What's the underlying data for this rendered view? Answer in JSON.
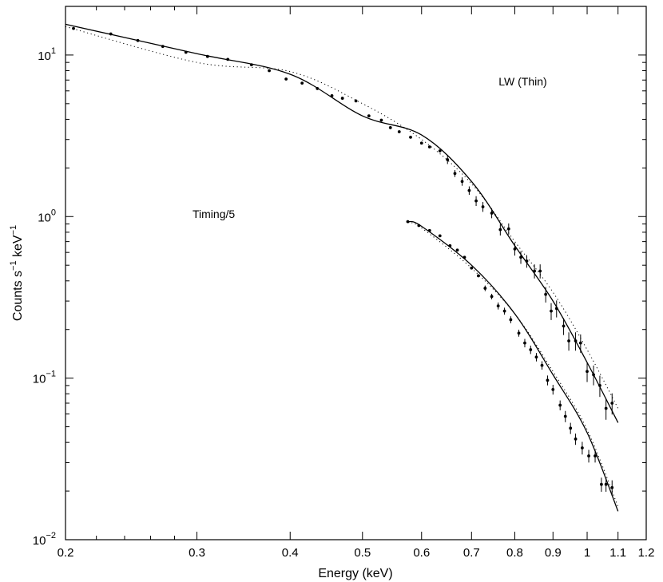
{
  "chart_data": {
    "type": "scatter",
    "title": "",
    "xlabel": "Energy (keV)",
    "ylabel": {
      "base": "Counts s",
      "exp1": "−1",
      "mid": " keV",
      "exp2": "−1"
    },
    "xscale": "log",
    "yscale": "log",
    "xlim": [
      0.2,
      1.2
    ],
    "ylim": [
      0.01,
      20
    ],
    "grid": false,
    "legend": "none",
    "x_ticks": [
      {
        "value": 0.2,
        "label": "0.2"
      },
      {
        "value": 0.3,
        "label": "0.3"
      },
      {
        "value": 0.4,
        "label": "0.4"
      },
      {
        "value": 0.5,
        "label": "0.5"
      },
      {
        "value": 0.6,
        "label": "0.6"
      },
      {
        "value": 0.7,
        "label": "0.7"
      },
      {
        "value": 0.8,
        "label": "0.8"
      },
      {
        "value": 0.9,
        "label": "0.9"
      },
      {
        "value": 1.0,
        "label": "1"
      },
      {
        "value": 1.1,
        "label": "1.1"
      },
      {
        "value": 1.2,
        "label": "1.2"
      }
    ],
    "y_ticks": [
      {
        "value": 10,
        "base": "10",
        "exp": "1"
      },
      {
        "value": 1,
        "base": "10",
        "exp": "0"
      },
      {
        "value": 0.1,
        "base": "10",
        "exp": "−1"
      },
      {
        "value": 0.01,
        "base": "10",
        "exp": "−2"
      }
    ],
    "annotations": [
      {
        "text": "LW (Thin)",
        "x": 0.82,
        "y": 6.5
      },
      {
        "text": "Timing/5",
        "x": 0.316,
        "y": 0.98
      }
    ],
    "series": [
      {
        "id": "lw",
        "points": [
          [
            0.205,
            14.6,
            0
          ],
          [
            0.23,
            13.5,
            0
          ],
          [
            0.25,
            12.3,
            0
          ],
          [
            0.27,
            11.3,
            0
          ],
          [
            0.29,
            10.4,
            0
          ],
          [
            0.31,
            9.8,
            0
          ],
          [
            0.33,
            9.4,
            0
          ],
          [
            0.355,
            8.7,
            0
          ],
          [
            0.375,
            8.0,
            0
          ],
          [
            0.395,
            7.1,
            0
          ],
          [
            0.415,
            6.7,
            0
          ],
          [
            0.435,
            6.2,
            0
          ],
          [
            0.455,
            5.6,
            0
          ],
          [
            0.47,
            5.4,
            0
          ],
          [
            0.49,
            5.2,
            0
          ],
          [
            0.51,
            4.2,
            0
          ],
          [
            0.53,
            3.95,
            0
          ],
          [
            0.545,
            3.55,
            0
          ],
          [
            0.56,
            3.35,
            0
          ],
          [
            0.58,
            3.1,
            0
          ],
          [
            0.6,
            2.85,
            0
          ],
          [
            0.615,
            2.7,
            0
          ],
          [
            0.635,
            2.55,
            0
          ],
          [
            0.65,
            2.25,
            0.06
          ],
          [
            0.665,
            1.85,
            0.05
          ],
          [
            0.68,
            1.65,
            0.06
          ],
          [
            0.695,
            1.45,
            0.06
          ],
          [
            0.71,
            1.25,
            0.07
          ],
          [
            0.725,
            1.15,
            0.07
          ],
          [
            0.745,
            1.05,
            0.07
          ],
          [
            0.765,
            0.83,
            0.08
          ],
          [
            0.785,
            0.84,
            0.08
          ],
          [
            0.8,
            0.63,
            0.09
          ],
          [
            0.815,
            0.56,
            0.09
          ],
          [
            0.83,
            0.53,
            0.09
          ],
          [
            0.85,
            0.46,
            0.1
          ],
          [
            0.865,
            0.46,
            0.1
          ],
          [
            0.88,
            0.33,
            0.11
          ],
          [
            0.895,
            0.26,
            0.12
          ],
          [
            0.91,
            0.27,
            0.12
          ],
          [
            0.93,
            0.21,
            0.12
          ],
          [
            0.945,
            0.17,
            0.13
          ],
          [
            0.965,
            0.17,
            0.13
          ],
          [
            0.98,
            0.165,
            0.13
          ],
          [
            1.0,
            0.11,
            0.14
          ],
          [
            1.02,
            0.105,
            0.14
          ],
          [
            1.04,
            0.09,
            0.15
          ],
          [
            1.06,
            0.065,
            0.15
          ],
          [
            1.08,
            0.07,
            0.15
          ]
        ],
        "model_solid": [
          [
            0.2,
            15.5
          ],
          [
            0.3,
            10.2
          ],
          [
            0.4,
            7.6
          ],
          [
            0.5,
            4.2
          ],
          [
            0.6,
            3.2
          ],
          [
            0.7,
            1.65
          ],
          [
            0.8,
            0.66
          ],
          [
            0.9,
            0.3
          ],
          [
            1.0,
            0.125
          ],
          [
            1.1,
            0.053
          ]
        ],
        "model_dotted": [
          [
            0.2,
            15.0
          ],
          [
            0.3,
            9.0
          ],
          [
            0.4,
            7.9
          ],
          [
            0.5,
            5.0
          ],
          [
            0.6,
            3.0
          ],
          [
            0.7,
            1.6
          ],
          [
            0.8,
            0.7
          ],
          [
            0.9,
            0.34
          ],
          [
            1.0,
            0.15
          ],
          [
            1.1,
            0.065
          ]
        ]
      },
      {
        "id": "timing",
        "points": [
          [
            0.575,
            0.93,
            0
          ],
          [
            0.595,
            0.88,
            0
          ],
          [
            0.615,
            0.82,
            0
          ],
          [
            0.635,
            0.76,
            0
          ],
          [
            0.655,
            0.66,
            0
          ],
          [
            0.67,
            0.62,
            0
          ],
          [
            0.685,
            0.56,
            0
          ],
          [
            0.7,
            0.48,
            0
          ],
          [
            0.715,
            0.43,
            0
          ],
          [
            0.73,
            0.36,
            0.04
          ],
          [
            0.745,
            0.32,
            0.04
          ],
          [
            0.76,
            0.28,
            0.05
          ],
          [
            0.775,
            0.26,
            0.05
          ],
          [
            0.79,
            0.23,
            0.05
          ],
          [
            0.81,
            0.19,
            0.05
          ],
          [
            0.825,
            0.165,
            0.06
          ],
          [
            0.84,
            0.15,
            0.06
          ],
          [
            0.855,
            0.135,
            0.06
          ],
          [
            0.87,
            0.12,
            0.06
          ],
          [
            0.885,
            0.097,
            0.07
          ],
          [
            0.9,
            0.085,
            0.07
          ],
          [
            0.92,
            0.068,
            0.07
          ],
          [
            0.935,
            0.058,
            0.08
          ],
          [
            0.95,
            0.049,
            0.08
          ],
          [
            0.965,
            0.042,
            0.08
          ],
          [
            0.985,
            0.037,
            0.09
          ],
          [
            1.005,
            0.033,
            0.09
          ],
          [
            1.025,
            0.033,
            0.09
          ],
          [
            1.045,
            0.022,
            0.1
          ],
          [
            1.06,
            0.022,
            0.1
          ],
          [
            1.08,
            0.021,
            0.11
          ]
        ],
        "model_solid": [
          [
            0.575,
            0.93
          ],
          [
            0.6,
            0.87
          ],
          [
            0.7,
            0.5
          ],
          [
            0.8,
            0.25
          ],
          [
            0.9,
            0.105
          ],
          [
            1.0,
            0.046
          ],
          [
            1.1,
            0.015
          ]
        ],
        "model_dotted": [
          [
            0.575,
            0.92
          ],
          [
            0.6,
            0.85
          ],
          [
            0.7,
            0.48
          ],
          [
            0.8,
            0.25
          ],
          [
            0.9,
            0.11
          ],
          [
            1.0,
            0.048
          ],
          [
            1.1,
            0.016
          ]
        ]
      }
    ]
  }
}
